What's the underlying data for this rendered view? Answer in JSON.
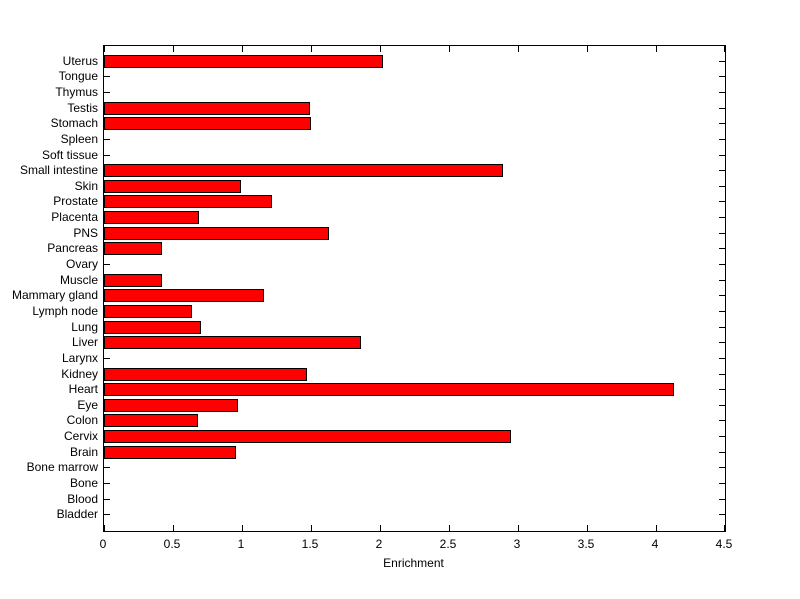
{
  "figure": {
    "background_color": "#FFFFFF",
    "axis_color": "#000000",
    "bar_color": "#FF0000",
    "bar_edge_color": "#000000",
    "text_color": "#000000"
  },
  "chart_data": {
    "type": "bar",
    "orientation": "horizontal",
    "title": "",
    "xlabel": "Enrichment",
    "ylabel": "",
    "xlim": [
      0,
      4.5
    ],
    "xticks": [
      0,
      0.5,
      1,
      1.5,
      2,
      2.5,
      3,
      3.5,
      4,
      4.5
    ],
    "xtick_labels": [
      "0",
      "0.5",
      "1",
      "1.5",
      "2",
      "2.5",
      "3",
      "3.5",
      "4",
      "4.5"
    ],
    "grid": false,
    "legend": null,
    "categories": [
      "Uterus",
      "Tongue",
      "Thymus",
      "Testis",
      "Stomach",
      "Spleen",
      "Soft tissue",
      "Small intestine",
      "Skin",
      "Prostate",
      "Placenta",
      "PNS",
      "Pancreas",
      "Ovary",
      "Muscle",
      "Mammary gland",
      "Lymph node",
      "Lung",
      "Liver",
      "Larynx",
      "Kidney",
      "Heart",
      "Eye",
      "Colon",
      "Cervix",
      "Brain",
      "Bone marrow",
      "Bone",
      "Blood",
      "Bladder"
    ],
    "values": [
      2.02,
      0,
      0,
      1.49,
      1.5,
      0,
      0,
      2.89,
      0.99,
      1.22,
      0.69,
      1.63,
      0.42,
      0,
      0.42,
      1.16,
      0.64,
      0.7,
      1.86,
      0,
      1.47,
      4.13,
      0.97,
      0.68,
      2.95,
      0.96,
      0,
      0,
      0,
      0
    ]
  }
}
